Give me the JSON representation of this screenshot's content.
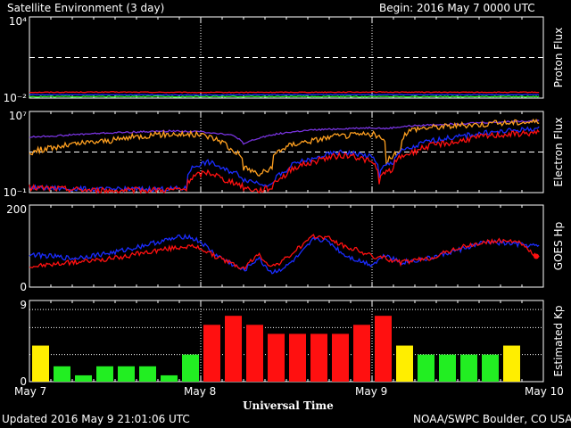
{
  "header": {
    "title": "Satellite Environment (3 day)",
    "begin": "Begin:  2016 May 7 0000 UTC"
  },
  "footer": {
    "updated": "Updated 2016 May  9 21:01:06 UTC",
    "credit": "NOAA/SWPC Boulder, CO USA",
    "xlabel": "Universal Time"
  },
  "x_ticks": [
    "May 7",
    "May 8",
    "May 9",
    "May 10"
  ],
  "colors": {
    "background": "#000000",
    "frame": "#ffffff",
    "red": "#ff1010",
    "blue": "#1a2cff",
    "green": "#22ee22",
    "orange": "#ffa020",
    "purple": "#7733dd",
    "yellow": "#ffee00"
  },
  "chart_data": [
    {
      "type": "line",
      "ylabel": "Proton Flux",
      "yscale": "log",
      "ylim": [
        0.01,
        10000
      ],
      "ytick_labels": [
        "10⁴",
        "10⁻²"
      ],
      "threshold": 10,
      "xlim_hours": [
        0,
        72
      ],
      "series": [
        {
          "color": "red",
          "x": [
            0,
            12,
            24,
            36,
            48,
            60,
            71
          ],
          "y": [
            0.027,
            0.028,
            0.026,
            0.027,
            0.028,
            0.027,
            0.027
          ],
          "noise": 0.03
        },
        {
          "color": "blue",
          "x": [
            0,
            12,
            24,
            36,
            48,
            60,
            71
          ],
          "y": [
            0.018,
            0.018,
            0.017,
            0.018,
            0.018,
            0.018,
            0.018
          ],
          "noise": 0.02
        },
        {
          "color": "green",
          "x": [
            0,
            12,
            24,
            36,
            48,
            60,
            71
          ],
          "y": [
            0.013,
            0.013,
            0.013,
            0.013,
            0.013,
            0.013,
            0.013
          ],
          "noise": 0.04
        }
      ]
    },
    {
      "type": "line",
      "ylabel": "Electron Flux",
      "yscale": "log",
      "ylim": [
        0.1,
        10000000
      ],
      "ytick_labels": [
        "10⁷",
        "10⁻¹"
      ],
      "threshold": 1000,
      "xlim_hours": [
        0,
        72
      ],
      "series": [
        {
          "color": "purple",
          "x": [
            0,
            4,
            8,
            12,
            16,
            20,
            24,
            28,
            30,
            32,
            36,
            40,
            44,
            48,
            50,
            54,
            60,
            66,
            71
          ],
          "y": [
            30000,
            40000,
            60000,
            80000,
            100000,
            120000,
            100000,
            50000,
            5000,
            20000,
            80000,
            150000,
            200000,
            250000,
            200000,
            400000,
            600000,
            900000,
            1200000
          ],
          "noise": 0.08
        },
        {
          "color": "orange",
          "x": [
            0,
            4,
            8,
            12,
            16,
            20,
            24,
            26,
            28,
            30,
            32,
            34,
            36,
            40,
            44,
            48,
            50,
            52,
            54,
            60,
            66,
            71
          ],
          "y": [
            800,
            3000,
            8000,
            15000,
            40000,
            60000,
            50000,
            20000,
            2000,
            30,
            5,
            20,
            3000,
            15000,
            40000,
            60000,
            100,
            800,
            200000,
            400000,
            700000,
            1000000
          ],
          "noise": 0.3
        },
        {
          "color": "blue",
          "x": [
            0,
            10,
            22,
            25,
            27,
            30,
            32,
            34,
            36,
            40,
            44,
            48,
            49,
            51,
            54,
            60,
            66,
            71
          ],
          "y": [
            0.3,
            0.2,
            0.25,
            100,
            20,
            2,
            1,
            0.5,
            10,
            200,
            1000,
            300,
            2,
            100,
            3000,
            30000,
            100000,
            200000
          ],
          "noise": 0.25
        },
        {
          "color": "red",
          "x": [
            0,
            10,
            22,
            25,
            27,
            30,
            32,
            34,
            36,
            40,
            44,
            48,
            49,
            51,
            54,
            60,
            66,
            71
          ],
          "y": [
            0.3,
            0.15,
            0.2,
            10,
            2,
            0.3,
            0.15,
            0.3,
            5,
            100,
            500,
            80,
            0.5,
            20,
            1000,
            10000,
            50000,
            80000
          ],
          "noise": 0.3
        }
      ]
    },
    {
      "type": "line",
      "ylabel": "GOES Hp",
      "yscale": "linear",
      "ylim": [
        0,
        200
      ],
      "ytick_labels": [
        "200",
        "0"
      ],
      "xlim_hours": [
        0,
        72
      ],
      "series": [
        {
          "color": "blue",
          "x": [
            0,
            6,
            12,
            18,
            22,
            24,
            26,
            28,
            30,
            32,
            34,
            36,
            38,
            40,
            42,
            44,
            46,
            48,
            50,
            52,
            56,
            60,
            64,
            68,
            71
          ],
          "y": [
            80,
            70,
            85,
            110,
            125,
            110,
            80,
            60,
            40,
            70,
            35,
            50,
            80,
            120,
            110,
            80,
            65,
            55,
            80,
            60,
            70,
            90,
            110,
            105,
            100
          ],
          "noise": 6
        },
        {
          "color": "red",
          "x": [
            0,
            6,
            12,
            18,
            22,
            24,
            26,
            28,
            30,
            32,
            34,
            36,
            38,
            40,
            42,
            44,
            46,
            48,
            50,
            52,
            56,
            60,
            64,
            68,
            70,
            71
          ],
          "y": [
            50,
            60,
            70,
            90,
            100,
            95,
            75,
            60,
            45,
            80,
            50,
            70,
            100,
            125,
            120,
            100,
            90,
            75,
            70,
            60,
            70,
            95,
            110,
            115,
            90,
            75
          ],
          "noise": 6
        }
      ]
    },
    {
      "type": "bar",
      "ylabel": "Estimated Kp",
      "ylim": [
        0,
        9
      ],
      "ytick_labels": [
        "9",
        "0"
      ],
      "bin_hours": 3,
      "values": [
        4,
        1.7,
        0.7,
        1.7,
        1.7,
        1.7,
        0.7,
        3,
        6.3,
        7.3,
        6.3,
        5.3,
        5.3,
        5.3,
        5.3,
        6.3,
        7.3,
        4,
        3,
        3,
        3,
        3,
        4
      ],
      "colors": [
        "yellow",
        "green",
        "green",
        "green",
        "green",
        "green",
        "green",
        "green",
        "red",
        "red",
        "red",
        "red",
        "red",
        "red",
        "red",
        "red",
        "red",
        "yellow",
        "green",
        "green",
        "green",
        "green",
        "yellow"
      ]
    }
  ]
}
